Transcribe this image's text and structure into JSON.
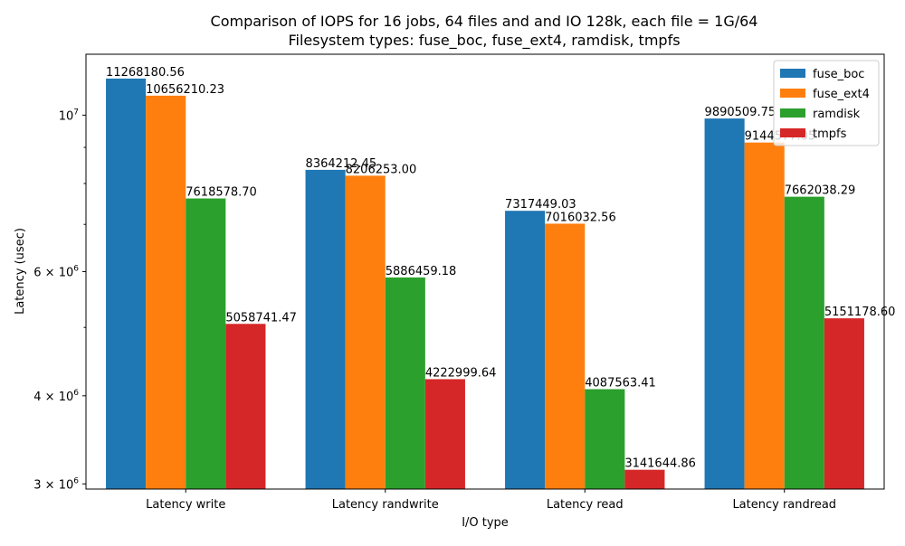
{
  "chart_data": {
    "type": "bar",
    "title": "Comparison of IOPS for 16 jobs, 64 files and  and IO 128k, each file = 1G/64",
    "subtitle": "Filesystem types: fuse_boc, fuse_ext4, ramdisk, tmpfs",
    "xlabel": "I/O type",
    "ylabel": "Latency (usec)",
    "yscale": "log",
    "ylim": [
      2950000,
      12200000
    ],
    "yticks": [
      {
        "value": 3000000,
        "base": "3",
        "exp": "6"
      },
      {
        "value": 4000000,
        "base": "4",
        "exp": "6"
      },
      {
        "value": 6000000,
        "base": "6",
        "exp": "6"
      },
      {
        "value": 10000000,
        "base": "10",
        "exp": "7",
        "power_only": true
      }
    ],
    "minor_yticks": [
      5000000,
      7000000,
      8000000,
      9000000
    ],
    "categories": [
      "Latency write",
      "Latency randwrite",
      "Latency read",
      "Latency randread"
    ],
    "series": [
      {
        "name": "fuse_boc",
        "color": "#1f77b4",
        "values": [
          11268180.56,
          8364212.45,
          7317449.03,
          9890509.75
        ],
        "labels": [
          "11268180.56",
          "8364212.45",
          "7317449.03",
          "9890509.75"
        ]
      },
      {
        "name": "fuse_ext4",
        "color": "#ff7f0e",
        "values": [
          10656210.23,
          8206253.0,
          7016032.56,
          9144577.05
        ],
        "labels": [
          "10656210.23",
          "8206253.00",
          "7016032.56",
          "9144577.05"
        ]
      },
      {
        "name": "ramdisk",
        "color": "#2ca02c",
        "values": [
          7618578.7,
          5886459.18,
          4087563.41,
          7662038.29
        ],
        "labels": [
          "7618578.70",
          "5886459.18",
          "4087563.41",
          "7662038.29"
        ]
      },
      {
        "name": "tmpfs",
        "color": "#d62728",
        "values": [
          5058741.47,
          4222999.64,
          3141644.86,
          5151178.6
        ],
        "labels": [
          "5058741.47",
          "4222999.64",
          "3141644.86",
          "5151178.60"
        ]
      }
    ],
    "legend_position": "top-right",
    "grid": false
  }
}
